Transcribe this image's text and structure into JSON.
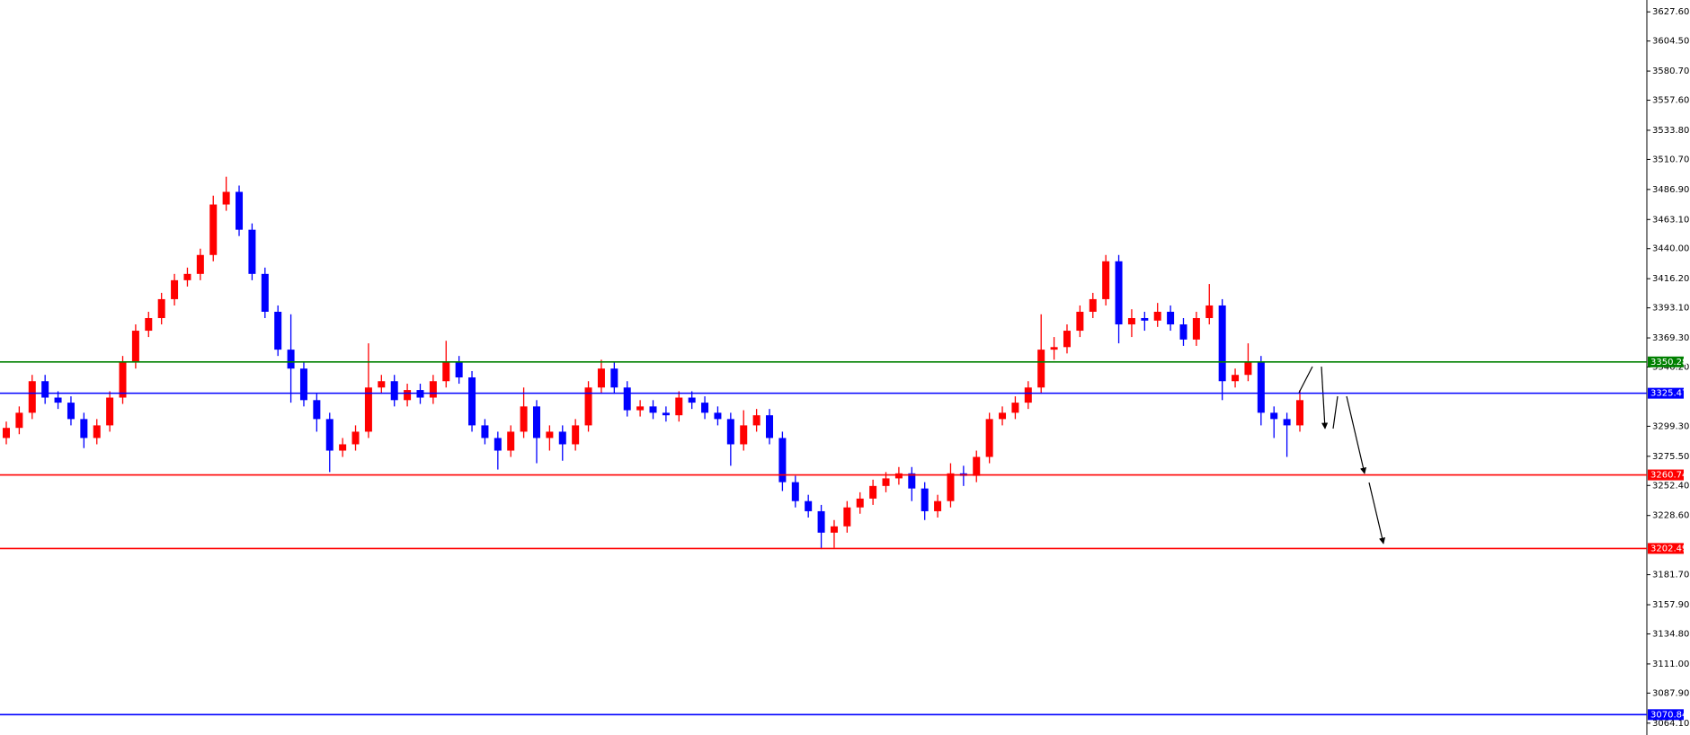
{
  "chart_data": {
    "type": "candlestick",
    "ylim": [
      3054.7,
      3637.0
    ],
    "yticks": [
      {
        "value": 3627.6,
        "label": "3627.60"
      },
      {
        "value": 3604.5,
        "label": "3604.50"
      },
      {
        "value": 3580.7,
        "label": "3580.70"
      },
      {
        "value": 3557.6,
        "label": "3557.60"
      },
      {
        "value": 3533.8,
        "label": "3533.80"
      },
      {
        "value": 3510.7,
        "label": "3510.70"
      },
      {
        "value": 3486.9,
        "label": "3486.90"
      },
      {
        "value": 3463.1,
        "label": "3463.10"
      },
      {
        "value": 3440,
        "label": "3440.00"
      },
      {
        "value": 3416.2,
        "label": "3416.20"
      },
      {
        "value": 3393.1,
        "label": "3393.10"
      },
      {
        "value": 3369.3,
        "label": "3369.30"
      },
      {
        "value": 3346.2,
        "label": "3346.20"
      },
      {
        "value": 3299.3,
        "label": "3299.30"
      },
      {
        "value": 3275.5,
        "label": "3275.50"
      },
      {
        "value": 3252.4,
        "label": "3252.40"
      },
      {
        "value": 3228.6,
        "label": "3228.60"
      },
      {
        "value": 3181.7,
        "label": "3181.70"
      },
      {
        "value": 3157.9,
        "label": "3157.90"
      },
      {
        "value": 3134.8,
        "label": "3134.80"
      },
      {
        "value": 3111,
        "label": "3111.00"
      },
      {
        "value": 3087.9,
        "label": "3087.90"
      },
      {
        "value": 3064.1,
        "label": "3064.10"
      }
    ],
    "up_color": "#ff0000",
    "down_color": "#0000ff",
    "candles": {
      "open": [
        3290,
        3298,
        3310,
        3335,
        3322,
        3318,
        3305,
        3290,
        3300,
        3322,
        3350,
        3375,
        3385,
        3400,
        3415,
        3420,
        3435,
        3475,
        3485,
        3455,
        3420,
        3390,
        3360,
        3345,
        3320,
        3305,
        3280,
        3285,
        3295,
        3330,
        3335,
        3320,
        3328,
        3322,
        3335,
        3350,
        3338,
        3300,
        3290,
        3280,
        3295,
        3315,
        3290,
        3295,
        3285,
        3300,
        3330,
        3345,
        3330,
        3312,
        3315,
        3310,
        3308,
        3322,
        3318,
        3310,
        3305,
        3285,
        3300,
        3308,
        3290,
        3255,
        3240,
        3232,
        3215,
        3220,
        3235,
        3242,
        3252,
        3258,
        3262,
        3250,
        3232,
        3240,
        3262,
        3260,
        3275,
        3305,
        3310,
        3318,
        3330,
        3360,
        3362,
        3375,
        3390,
        3400,
        3430,
        3380,
        3385,
        3383,
        3390,
        3380,
        3368,
        3385,
        3395,
        3335,
        3340,
        3350,
        3310,
        3305,
        3300
      ],
      "high": [
        3303,
        3315,
        3340,
        3340,
        3327,
        3323,
        3310,
        3305,
        3327,
        3355,
        3380,
        3390,
        3405,
        3420,
        3425,
        3440,
        3482,
        3497,
        3490,
        3460,
        3425,
        3395,
        3388,
        3350,
        3325,
        3310,
        3290,
        3300,
        3365,
        3340,
        3340,
        3333,
        3333,
        3340,
        3367,
        3355,
        3343,
        3305,
        3295,
        3300,
        3330,
        3320,
        3300,
        3300,
        3305,
        3335,
        3352,
        3350,
        3335,
        3320,
        3320,
        3315,
        3327,
        3327,
        3323,
        3315,
        3310,
        3312,
        3313,
        3313,
        3295,
        3260,
        3245,
        3237,
        3225,
        3240,
        3247,
        3257,
        3263,
        3267,
        3267,
        3255,
        3245,
        3270,
        3268,
        3280,
        3310,
        3315,
        3323,
        3335,
        3388,
        3370,
        3380,
        3395,
        3405,
        3435,
        3435,
        3392,
        3390,
        3397,
        3395,
        3385,
        3390,
        3412,
        3400,
        3345,
        3365,
        3355,
        3315,
        3310,
        3328
      ],
      "low": [
        3285,
        3293,
        3305,
        3317,
        3313,
        3300,
        3282,
        3285,
        3295,
        3317,
        3345,
        3370,
        3380,
        3395,
        3410,
        3415,
        3430,
        3470,
        3450,
        3415,
        3385,
        3355,
        3318,
        3315,
        3295,
        3263,
        3275,
        3280,
        3290,
        3325,
        3315,
        3315,
        3317,
        3317,
        3330,
        3333,
        3295,
        3285,
        3265,
        3275,
        3290,
        3270,
        3280,
        3272,
        3280,
        3295,
        3325,
        3325,
        3307,
        3307,
        3305,
        3303,
        3303,
        3313,
        3305,
        3300,
        3268,
        3280,
        3295,
        3285,
        3248,
        3235,
        3227,
        3202,
        3203,
        3215,
        3230,
        3237,
        3247,
        3253,
        3240,
        3225,
        3227,
        3235,
        3252,
        3255,
        3270,
        3300,
        3305,
        3313,
        3325,
        3352,
        3357,
        3370,
        3385,
        3395,
        3365,
        3370,
        3375,
        3378,
        3375,
        3363,
        3363,
        3380,
        3320,
        3330,
        3335,
        3300,
        3290,
        3275,
        3295
      ],
      "close": [
        3298,
        3310,
        3335,
        3322,
        3318,
        3305,
        3290,
        3300,
        3322,
        3350,
        3375,
        3385,
        3400,
        3415,
        3420,
        3435,
        3475,
        3485,
        3455,
        3420,
        3390,
        3360,
        3345,
        3320,
        3305,
        3280,
        3285,
        3295,
        3330,
        3335,
        3320,
        3328,
        3322,
        3335,
        3350,
        3338,
        3300,
        3290,
        3280,
        3295,
        3315,
        3290,
        3295,
        3285,
        3300,
        3330,
        3345,
        3330,
        3312,
        3315,
        3310,
        3308,
        3322,
        3318,
        3310,
        3305,
        3285,
        3300,
        3308,
        3290,
        3255,
        3240,
        3232,
        3215,
        3220,
        3235,
        3242,
        3252,
        3258,
        3262,
        3250,
        3232,
        3240,
        3262,
        3260,
        3275,
        3305,
        3310,
        3318,
        3330,
        3360,
        3362,
        3375,
        3390,
        3400,
        3430,
        3380,
        3385,
        3383,
        3390,
        3380,
        3368,
        3385,
        3395,
        3335,
        3340,
        3350,
        3310,
        3305,
        3300,
        3320
      ]
    },
    "levels": [
      {
        "value": 3350.28,
        "color": "#008000"
      },
      {
        "value": 3325.47,
        "color": "#0000ff"
      },
      {
        "value": 3260.74,
        "color": "#ff0000"
      },
      {
        "value": 3202.49,
        "color": "#ff0000"
      },
      {
        "value": 3070.84,
        "color": "#0000ff"
      }
    ]
  }
}
